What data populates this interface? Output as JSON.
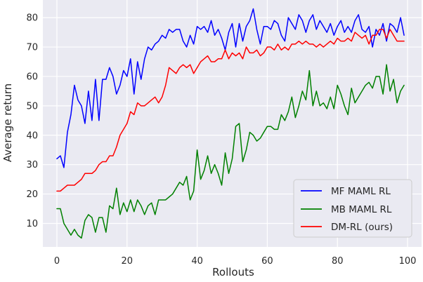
{
  "chart_data": {
    "type": "line",
    "title": "",
    "xlabel": "Rollouts",
    "ylabel": "Average return",
    "xlim": [
      -4,
      104
    ],
    "ylim": [
      2,
      86
    ],
    "xticks": [
      0,
      20,
      40,
      60,
      80,
      100
    ],
    "yticks": [
      10,
      20,
      30,
      40,
      50,
      60,
      70,
      80
    ],
    "grid": true,
    "legend_position": "bottom-right",
    "x": [
      0,
      1,
      2,
      3,
      4,
      5,
      6,
      7,
      8,
      9,
      10,
      11,
      12,
      13,
      14,
      15,
      16,
      17,
      18,
      19,
      20,
      21,
      22,
      23,
      24,
      25,
      26,
      27,
      28,
      29,
      30,
      31,
      32,
      33,
      34,
      35,
      36,
      37,
      38,
      39,
      40,
      41,
      42,
      43,
      44,
      45,
      46,
      47,
      48,
      49,
      50,
      51,
      52,
      53,
      54,
      55,
      56,
      57,
      58,
      59,
      60,
      61,
      62,
      63,
      64,
      65,
      66,
      67,
      68,
      69,
      70,
      71,
      72,
      73,
      74,
      75,
      76,
      77,
      78,
      79,
      80,
      81,
      82,
      83,
      84,
      85,
      86,
      87,
      88,
      89,
      90,
      91,
      92,
      93,
      94,
      95,
      96,
      97,
      98,
      99
    ],
    "series": [
      {
        "name": "MF MAML RL",
        "color": "#0000ff",
        "values": [
          32,
          33,
          29,
          41,
          47,
          57,
          52,
          50,
          44,
          55,
          45,
          59,
          45,
          59,
          59,
          63,
          60,
          54,
          57,
          62,
          60,
          66,
          54,
          65,
          59,
          66,
          70,
          69,
          71,
          72,
          74,
          73,
          76,
          75,
          76,
          76,
          72,
          70,
          74,
          71,
          77,
          76,
          77,
          75,
          79,
          74,
          76,
          73,
          69,
          75,
          78,
          70,
          78,
          72,
          77,
          79,
          83,
          76,
          71,
          77,
          77,
          76,
          79,
          78,
          74,
          72,
          80,
          78,
          76,
          81,
          79,
          75,
          79,
          81,
          76,
          79,
          77,
          75,
          78,
          74,
          77,
          79,
          75,
          77,
          75,
          79,
          81,
          76,
          75,
          77,
          70,
          76,
          74,
          78,
          72,
          78,
          77,
          75,
          80,
          74
        ]
      },
      {
        "name": "MB MAML RL",
        "color": "#008000",
        "values": [
          15,
          15,
          10,
          8,
          6,
          8,
          6,
          5,
          11,
          13,
          12,
          7,
          12,
          12,
          7,
          16,
          15,
          22,
          13,
          17,
          14,
          18,
          14,
          18,
          16,
          13,
          16,
          17,
          13,
          18,
          18,
          18,
          19,
          20,
          22,
          24,
          23,
          26,
          18,
          21,
          35,
          25,
          28,
          33,
          27,
          30,
          27,
          23,
          34,
          27,
          32,
          43,
          44,
          31,
          35,
          41,
          40,
          38,
          39,
          41,
          43,
          43,
          42,
          42,
          47,
          45,
          48,
          53,
          46,
          50,
          55,
          52,
          62,
          50,
          55,
          50,
          51,
          49,
          53,
          49,
          57,
          54,
          50,
          47,
          56,
          51,
          53,
          55,
          57,
          58,
          56,
          60,
          60,
          54,
          64,
          55,
          59,
          51,
          55,
          57
        ]
      },
      {
        "name": "DM-RL (ours)",
        "color": "#ff0000",
        "values": [
          21,
          21,
          22,
          23,
          23,
          23,
          24,
          25,
          27,
          27,
          27,
          28,
          30,
          31,
          31,
          33,
          33,
          36,
          40,
          42,
          44,
          48,
          47,
          51,
          50,
          50,
          51,
          52,
          53,
          51,
          53,
          57,
          63,
          62,
          61,
          63,
          64,
          63,
          64,
          61,
          63,
          65,
          66,
          67,
          65,
          65,
          66,
          66,
          69,
          66,
          68,
          67,
          68,
          66,
          70,
          68,
          68,
          69,
          67,
          68,
          70,
          70,
          69,
          71,
          69,
          70,
          69,
          71,
          71,
          72,
          71,
          72,
          71,
          71,
          70,
          71,
          70,
          71,
          72,
          71,
          73,
          72,
          72,
          73,
          72,
          75,
          74,
          73,
          74,
          71,
          74,
          74,
          76,
          76,
          73,
          76,
          74,
          72,
          72,
          72
        ]
      }
    ]
  }
}
